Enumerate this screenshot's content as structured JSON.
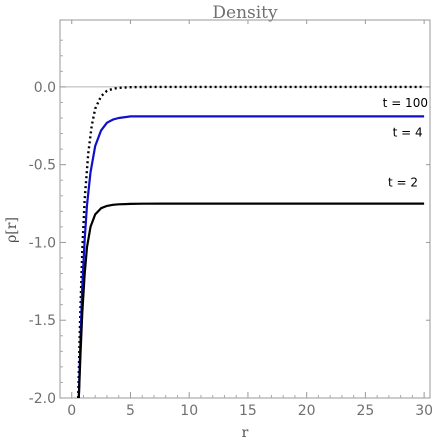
{
  "chart_data": {
    "type": "line",
    "title": "Density",
    "xlabel": "r",
    "ylabel": "ρ[r]",
    "xlim": [
      -1,
      30.5
    ],
    "ylim": [
      -2.0,
      0.43
    ],
    "xticks": [
      0,
      5,
      10,
      15,
      20,
      25,
      30
    ],
    "yticks": [
      0.0,
      -0.5,
      -1.0,
      -1.5,
      -2.0
    ],
    "ytick_labels": [
      "0.0",
      "-0.5",
      "-1.0",
      "-1.5",
      "-2.0"
    ],
    "grid": false,
    "legend": "none",
    "series": [
      {
        "color": "#000000",
        "style": "dotted",
        "x": [
          0.55,
          0.7,
          0.9,
          1.1,
          1.4,
          1.7,
          2.0,
          2.5,
          3.0,
          3.5,
          4.0,
          5.0,
          6.0,
          10.0,
          15.0,
          20.0,
          25.0,
          30.0
        ],
        "y": [
          -2.0,
          -1.52,
          -1.05,
          -0.72,
          -0.43,
          -0.25,
          -0.14,
          -0.06,
          -0.025,
          -0.012,
          -0.006,
          -0.002,
          -0.001,
          0.0,
          0.0,
          0.0,
          0.0,
          0.0
        ]
      },
      {
        "color": "#1010cc",
        "style": "solid",
        "x": [
          0.6,
          0.75,
          0.9,
          1.1,
          1.3,
          1.6,
          2.0,
          2.5,
          3.0,
          3.5,
          4.0,
          5.0,
          6.0,
          8.0,
          10.0,
          15.0,
          20.0,
          25.0,
          30.0
        ],
        "y": [
          -2.0,
          -1.6,
          -1.28,
          -0.98,
          -0.76,
          -0.55,
          -0.38,
          -0.28,
          -0.23,
          -0.21,
          -0.2,
          -0.19,
          -0.19,
          -0.19,
          -0.19,
          -0.19,
          -0.19,
          -0.19,
          -0.19
        ]
      },
      {
        "color": "#000000",
        "style": "solid",
        "x": [
          0.6,
          0.75,
          0.9,
          1.1,
          1.3,
          1.6,
          2.0,
          2.5,
          3.0,
          3.5,
          4.0,
          5.0,
          6.0,
          8.0,
          10.0,
          15.0,
          20.0,
          25.0,
          30.0
        ],
        "y": [
          -2.0,
          -1.7,
          -1.45,
          -1.2,
          -1.03,
          -0.9,
          -0.82,
          -0.78,
          -0.765,
          -0.758,
          -0.755,
          -0.752,
          -0.751,
          -0.75,
          -0.75,
          -0.75,
          -0.75,
          -0.75,
          -0.75
        ]
      }
    ],
    "annotations": [
      {
        "text": "t = 100",
        "x": 28.4,
        "y": -0.13
      },
      {
        "text": "t = 4",
        "x": 28.6,
        "y": -0.32
      },
      {
        "text": "t = 2",
        "x": 28.2,
        "y": -0.64
      }
    ]
  }
}
